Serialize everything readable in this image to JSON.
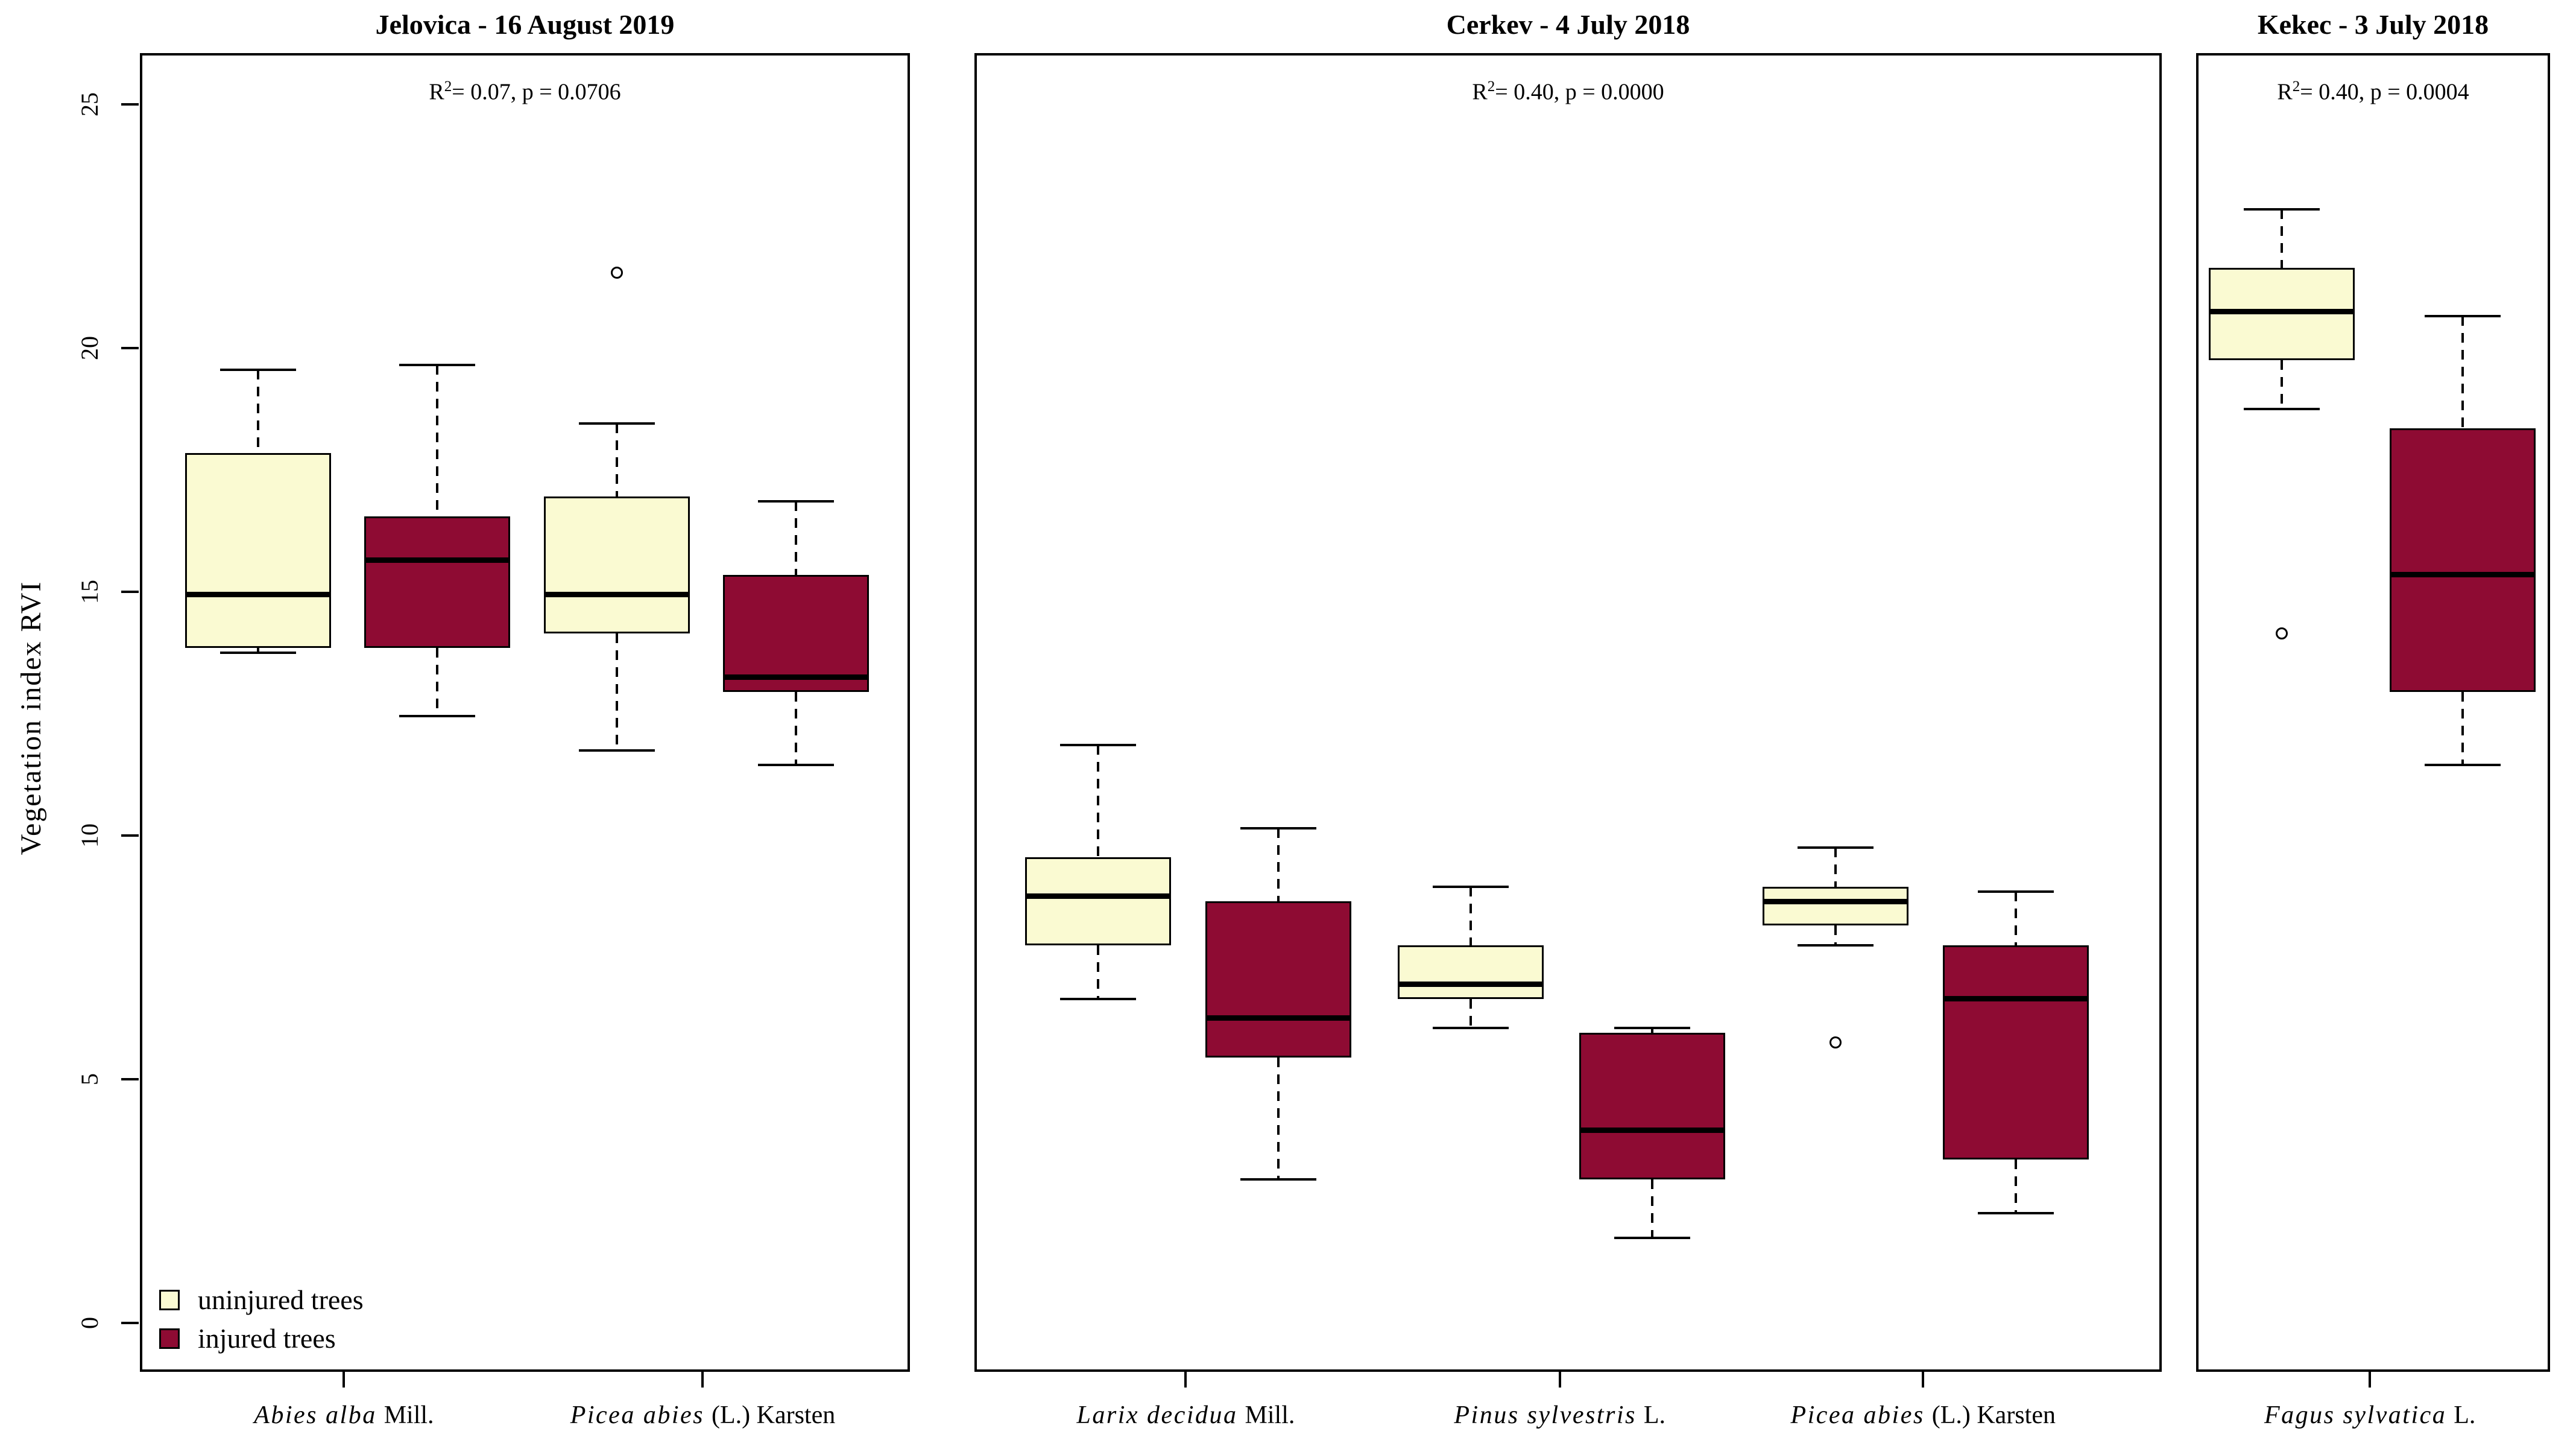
{
  "chart_data": {
    "type": "boxplot",
    "title": "",
    "ylabel": "Vegetation index RVI",
    "ylim": [
      0,
      25
    ],
    "grid": false,
    "legend_position": "bottom-left of first panel",
    "colors": {
      "uninjured": "#FAFAD2",
      "injured": "#8E0B33",
      "line": "#000000",
      "background": "#ffffff"
    },
    "y_axis": {
      "title": "Vegetation index RVI",
      "tick_labels": [
        "0",
        "5",
        "10",
        "15",
        "20",
        "25"
      ],
      "tick_values": [
        0,
        5,
        10,
        15,
        20,
        25
      ]
    },
    "legend": {
      "items": [
        {
          "label": "uninjured trees",
          "group": "uninjured"
        },
        {
          "label": "injured trees",
          "group": "injured"
        }
      ]
    },
    "panels": [
      {
        "title": "Jelovica - 16 August 2019",
        "annotation": {
          "base": "R",
          "sup": "2",
          "rest": "= 0.07, p = 0.0706"
        },
        "groups": [
          {
            "species_italic": "Abies alba",
            "species_regular": "Mill.",
            "boxes": [
              {
                "group": "uninjured",
                "whisker_low": 13.8,
                "q1": 13.9,
                "median": 15.0,
                "q3": 17.9,
                "whisker_high": 19.6,
                "outliers": []
              },
              {
                "group": "injured",
                "whisker_low": 12.5,
                "q1": 13.9,
                "median": 15.7,
                "q3": 16.6,
                "whisker_high": 19.7,
                "outliers": []
              }
            ]
          },
          {
            "species_italic": "Picea abies",
            "species_regular": "(L.) Karsten",
            "boxes": [
              {
                "group": "uninjured",
                "whisker_low": 11.8,
                "q1": 14.2,
                "median": 15.0,
                "q3": 17.0,
                "whisker_high": 18.5,
                "outliers": [
                  21.6
                ]
              },
              {
                "group": "injured",
                "whisker_low": 11.5,
                "q1": 13.0,
                "median": 13.3,
                "q3": 15.4,
                "whisker_high": 16.9,
                "outliers": []
              }
            ]
          }
        ]
      },
      {
        "title": "Cerkev - 4 July 2018",
        "annotation": {
          "base": "R",
          "sup": "2",
          "rest": "= 0.40, p = 0.0000"
        },
        "groups": [
          {
            "species_italic": "Larix decidua",
            "species_regular": "Mill.",
            "boxes": [
              {
                "group": "uninjured",
                "whisker_low": 6.7,
                "q1": 7.8,
                "median": 8.8,
                "q3": 9.6,
                "whisker_high": 11.9,
                "outliers": []
              },
              {
                "group": "injured",
                "whisker_low": 3.0,
                "q1": 5.5,
                "median": 6.3,
                "q3": 8.7,
                "whisker_high": 10.2,
                "outliers": []
              }
            ]
          },
          {
            "species_italic": "Pinus sylvestris",
            "species_regular": "L.",
            "boxes": [
              {
                "group": "uninjured",
                "whisker_low": 6.1,
                "q1": 6.7,
                "median": 7.0,
                "q3": 7.8,
                "whisker_high": 9.0,
                "outliers": []
              },
              {
                "group": "injured",
                "whisker_low": 1.8,
                "q1": 3.0,
                "median": 4.0,
                "q3": 6.0,
                "whisker_high": 6.1,
                "outliers": []
              }
            ]
          },
          {
            "species_italic": "Picea abies",
            "species_regular": "(L.) Karsten",
            "boxes": [
              {
                "group": "uninjured",
                "whisker_low": 7.8,
                "q1": 8.2,
                "median": 8.7,
                "q3": 9.0,
                "whisker_high": 9.8,
                "outliers": [
                  5.8
                ]
              },
              {
                "group": "injured",
                "whisker_low": 2.3,
                "q1": 3.4,
                "median": 6.7,
                "q3": 7.8,
                "whisker_high": 8.9,
                "outliers": []
              }
            ]
          }
        ]
      },
      {
        "title": "Kekec - 3 July 2018",
        "annotation": {
          "base": "R",
          "sup": "2",
          "rest": "= 0.40, p = 0.0004"
        },
        "groups": [
          {
            "species_italic": "Fagus sylvatica",
            "species_regular": "L.",
            "boxes": [
              {
                "group": "uninjured",
                "whisker_low": 18.8,
                "q1": 19.8,
                "median": 20.8,
                "q3": 21.7,
                "whisker_high": 22.9,
                "outliers": [
                  14.2
                ]
              },
              {
                "group": "injured",
                "whisker_low": 11.5,
                "q1": 13.0,
                "median": 15.4,
                "q3": 18.4,
                "whisker_high": 20.7,
                "outliers": []
              }
            ]
          }
        ]
      }
    ]
  }
}
